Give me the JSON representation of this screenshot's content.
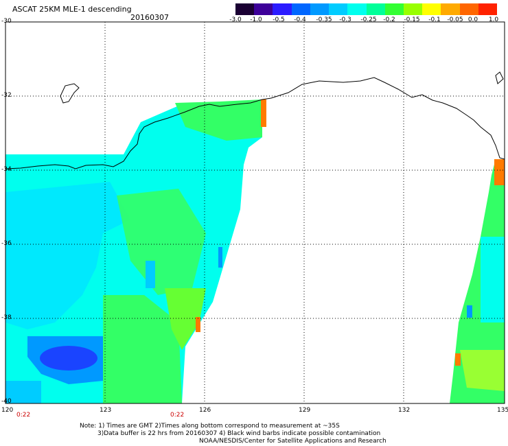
{
  "header": {
    "title": "ASCAT 25KM MLE-1 descending",
    "date": "20160307"
  },
  "colorbar": {
    "labels": [
      "-3.0",
      "-1.0",
      "-0.5",
      "-0.4",
      "-0.35",
      "-0.3",
      "-0.25",
      "-0.2",
      "-0.15",
      "-0.1",
      "-0.05",
      "0.0",
      "1.0"
    ],
    "colors": [
      "#1a0033",
      "#3d0099",
      "#2b1bff",
      "#0066ff",
      "#0099ff",
      "#00ccff",
      "#00ffee",
      "#00ff99",
      "#33ff33",
      "#99ff00",
      "#ffff00",
      "#ffaa00",
      "#ff6600",
      "#ff2200"
    ]
  },
  "map": {
    "lat_labels": [
      "-30",
      "-32",
      "-34",
      "-36",
      "-38",
      "-40"
    ],
    "lon_labels": [
      "120",
      "123",
      "126",
      "129",
      "132",
      "135"
    ],
    "pass_times": [
      "0:22",
      "0:22"
    ]
  },
  "notes": {
    "line1": "Note: 1) Times are GMT 2)Times along bottom correspond to measurement at ~35S",
    "line2": "3)Data buffer is 22 hrs from 20160307 4) Black wind barbs indicate possible contamination",
    "line3": "NOAA/NESDIS/Center for Satellite Applications and Research"
  }
}
